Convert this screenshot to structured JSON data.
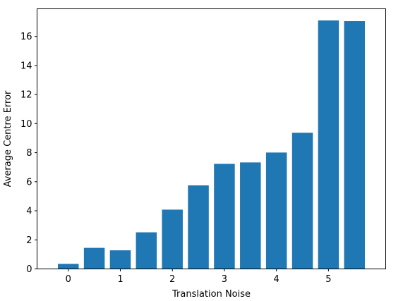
{
  "chart_data": {
    "type": "bar",
    "x": [
      0,
      0.5,
      1,
      1.5,
      2,
      2.5,
      3,
      3.5,
      4,
      4.5,
      5,
      5.5
    ],
    "values": [
      0.35,
      1.45,
      1.28,
      2.52,
      4.08,
      5.75,
      7.23,
      7.33,
      8.01,
      9.37,
      17.1,
      17.05
    ],
    "bar_width": 0.4,
    "xlim": [
      -0.6,
      6.1
    ],
    "ylim": [
      0,
      17.9
    ],
    "xticks": [
      0,
      1,
      2,
      3,
      4,
      5
    ],
    "xtick_labels": [
      "0",
      "1",
      "2",
      "3",
      "4",
      "5"
    ],
    "yticks": [
      0,
      2,
      4,
      6,
      8,
      10,
      12,
      14,
      16
    ],
    "ytick_labels": [
      "0",
      "2",
      "4",
      "6",
      "8",
      "10",
      "12",
      "14",
      "16"
    ],
    "xlabel": "Translation Noise",
    "ylabel": "Average Centre Error",
    "title": "",
    "grid": false,
    "bar_color": "#1f77b4"
  }
}
